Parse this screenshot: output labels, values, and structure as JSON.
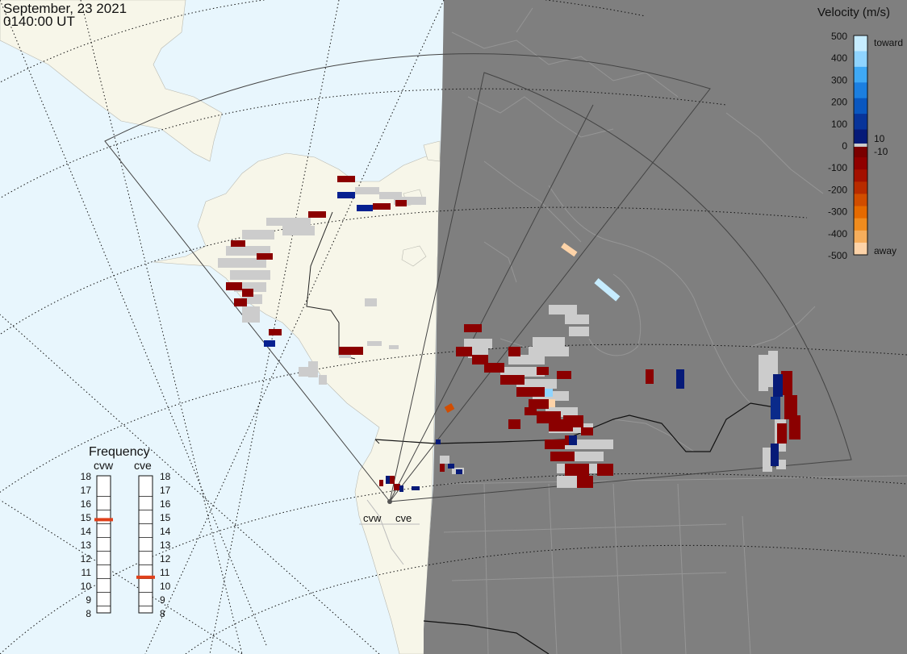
{
  "header": {
    "date": "September, 23 2021",
    "time": "0140:00 UT"
  },
  "velocity_legend": {
    "title": "Velocity (m/s)",
    "ticks": [
      "500",
      "400",
      "300",
      "200",
      "100",
      "0",
      "-100",
      "-200",
      "-300",
      "-400",
      "-500"
    ],
    "toward_label": "toward",
    "away_label": "away",
    "small_pos_label": "10",
    "small_neg_label": "-10",
    "colors": [
      "#c6ecff",
      "#8fd4ff",
      "#3fa9f5",
      "#1c7fe0",
      "#0a57c0",
      "#08349a",
      "#061a78",
      "#7a0000",
      "#900000",
      "#a31000",
      "#b82b00",
      "#d14d00",
      "#e56a00",
      "#f08c1e",
      "#f6ae5c",
      "#fdd3a8"
    ],
    "ground_scatter_color": "#cccccc"
  },
  "frequency": {
    "title": "Frequency",
    "left_label": "cvw",
    "right_label": "cve",
    "scale": [
      "18",
      "17",
      "16",
      "15",
      "14",
      "13",
      "12",
      "11",
      "10",
      "9",
      "8"
    ],
    "cvw_mhz": 14.8,
    "cve_mhz": 10.6,
    "marker_color": "#e0401a"
  },
  "radars": {
    "cvw_label": "cvw",
    "cve_label": "cve"
  },
  "map_colors": {
    "ocean": "#e8f6fd",
    "land": "#f7f6e9",
    "night": "#7f7f7f"
  }
}
